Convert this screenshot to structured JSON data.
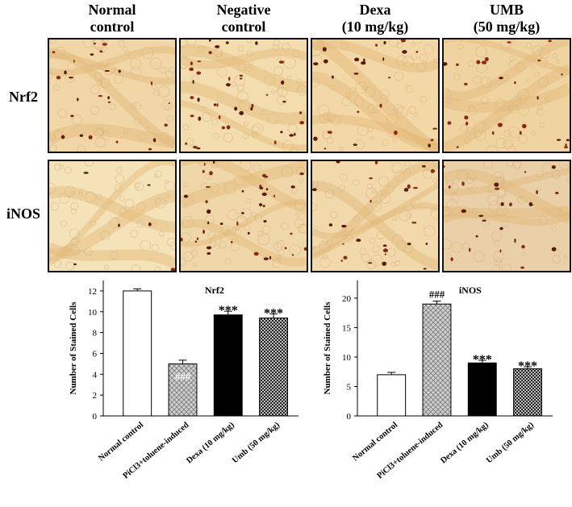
{
  "figure": {
    "columns": [
      {
        "line1": "Normal",
        "line2": "control"
      },
      {
        "line1": "Negative",
        "line2": "control"
      },
      {
        "line1": "Dexa",
        "line2": "(10 mg/kg)"
      },
      {
        "line1": "UMB",
        "line2": "(50 mg/kg)"
      }
    ],
    "rows": [
      "Nrf2",
      "iNOS"
    ]
  },
  "chart_data": [
    {
      "type": "bar",
      "title": "Nrf2",
      "ylabel": "Number of Stained Cells",
      "xlabel": "",
      "categories": [
        "Normal control",
        "PiCl3+toluene-induced",
        "Dexa (10 mg/kg)",
        "Umb (50 mg/kg)"
      ],
      "values": [
        12,
        5,
        9.7,
        9.4
      ],
      "errors": [
        0.2,
        0.35,
        0.35,
        0.4
      ],
      "annotations": [
        "",
        "###",
        "***",
        "***"
      ],
      "ylim": [
        0,
        13
      ],
      "yticks": [
        0,
        2,
        4,
        6,
        8,
        10,
        12
      ],
      "bar_fills": [
        "white",
        "crosshatch-light",
        "black",
        "crosshatch-dark"
      ],
      "grid": false
    },
    {
      "type": "bar",
      "title": "iNOS",
      "ylabel": "Number of Stained Cells",
      "xlabel": "",
      "categories": [
        "Normal control",
        "PiCl3+toluene-induced",
        "Dexa (10 mg/kg)",
        "Umb (50 mg/kg)"
      ],
      "values": [
        7,
        19,
        9,
        8
      ],
      "errors": [
        0.4,
        0.5,
        0.45,
        0.35
      ],
      "annotations": [
        "",
        "###",
        "***",
        "***"
      ],
      "ylim": [
        0,
        23
      ],
      "yticks": [
        0,
        5,
        10,
        15,
        20
      ],
      "bar_fills": [
        "white",
        "crosshatch-light",
        "black",
        "crosshatch-dark"
      ],
      "grid": false
    }
  ]
}
